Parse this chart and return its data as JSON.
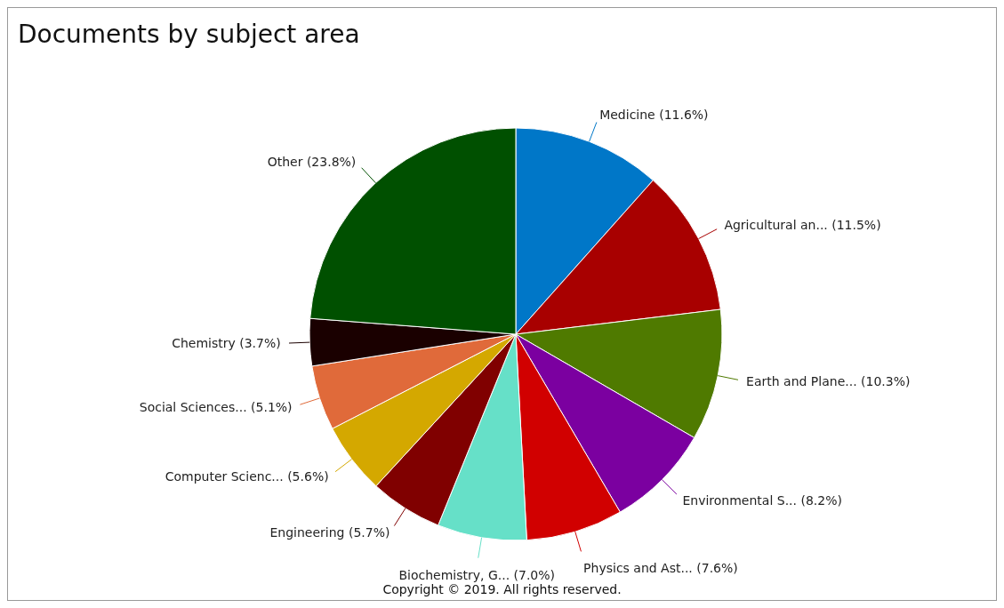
{
  "chart_data": {
    "type": "pie",
    "title": "Documents by subject area",
    "categories": [
      "Medicine",
      "Agricultural an...",
      "Earth and Plane...",
      "Environmental S...",
      "Physics and Ast...",
      "Biochemistry, G...",
      "Engineering",
      "Computer Scienc...",
      "Social Sciences...",
      "Chemistry",
      "Other"
    ],
    "values": [
      11.6,
      11.5,
      10.3,
      8.2,
      7.6,
      7.0,
      5.7,
      5.6,
      5.1,
      3.7,
      23.8
    ],
    "value_labels": [
      "(11.6%)",
      "(11.5%)",
      "(10.3%)",
      "(8.2%)",
      "(7.6%)",
      "(7.0%)",
      "(5.7%)",
      "(5.6%)",
      "(5.1%)",
      "(3.7%)",
      "(23.8%)"
    ],
    "colors": [
      "#0077c8",
      "#a80000",
      "#4f7a00",
      "#7b00a0",
      "#d10000",
      "#66e0c8",
      "#800000",
      "#d4a800",
      "#e06a3a",
      "#1a0000",
      "#005000"
    ],
    "annotations": [
      "Copyright © 2019. All rights reserved."
    ]
  }
}
